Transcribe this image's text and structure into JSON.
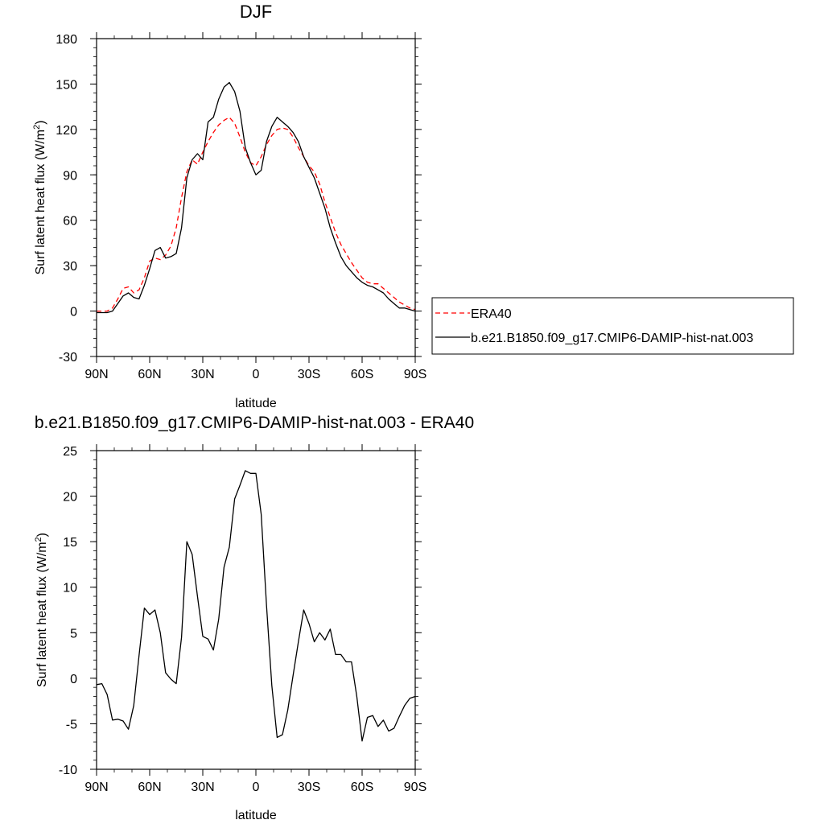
{
  "chart_data": [
    {
      "type": "line",
      "title": "DJF",
      "xlabel": "latitude",
      "ylabel": "Surf latent heat flux (W/m",
      "ylabel_sup": "2",
      "ylabel_close": ")",
      "xlim": [
        90,
        -90
      ],
      "ylim": [
        -30,
        180
      ],
      "xticks": [
        90,
        60,
        30,
        0,
        -30,
        -60,
        -90
      ],
      "xtick_labels": [
        "90N",
        "60N",
        "30N",
        "0",
        "30S",
        "60S",
        "90S"
      ],
      "yticks": [
        -30,
        0,
        30,
        60,
        90,
        120,
        150,
        180
      ],
      "ytick_labels": [
        "-30",
        "0",
        "30",
        "60",
        "90",
        "120",
        "150",
        "180"
      ],
      "legend": {
        "placement": "right",
        "entries": [
          "ERA40",
          "b.e21.B1850.f09_g17.CMIP6-DAMIP-hist-nat.003"
        ]
      },
      "series": [
        {
          "name": "ERA40",
          "color": "#ff0000",
          "dash": "dashed",
          "x": [
            90,
            87,
            84,
            81,
            78,
            75,
            72,
            69,
            66,
            63,
            60,
            57,
            54,
            51,
            48,
            45,
            42,
            39,
            36,
            33,
            30,
            27,
            24,
            21,
            18,
            15,
            12,
            9,
            6,
            3,
            0,
            -3,
            -6,
            -9,
            -12,
            -15,
            -18,
            -21,
            -24,
            -27,
            -30,
            -33,
            -36,
            -39,
            -42,
            -45,
            -48,
            -51,
            -54,
            -57,
            -60,
            -63,
            -66,
            -69,
            -72,
            -75,
            -78,
            -81,
            -84,
            -87,
            -90
          ],
          "y": [
            0,
            0,
            0,
            2,
            8,
            15,
            16,
            12,
            14,
            22,
            33,
            35,
            34,
            37,
            43,
            55,
            75,
            92,
            100,
            97,
            105,
            112,
            118,
            123,
            126,
            128,
            124,
            115,
            105,
            98,
            96,
            102,
            110,
            116,
            120,
            121,
            120,
            115,
            108,
            102,
            96,
            92,
            84,
            72,
            62,
            52,
            44,
            38,
            32,
            27,
            22,
            19,
            18,
            18,
            15,
            12,
            9,
            6,
            4,
            2,
            1
          ]
        },
        {
          "name": "b.e21.B1850.f09_g17.CMIP6-DAMIP-hist-nat.003",
          "color": "#000000",
          "dash": "solid",
          "x": [
            90,
            87,
            84,
            81,
            78,
            75,
            72,
            69,
            66,
            63,
            60,
            57,
            54,
            51,
            48,
            45,
            42,
            39,
            36,
            33,
            30,
            27,
            24,
            21,
            18,
            15,
            12,
            9,
            6,
            3,
            0,
            -3,
            -6,
            -9,
            -12,
            -15,
            -18,
            -21,
            -24,
            -27,
            -30,
            -33,
            -36,
            -39,
            -42,
            -45,
            -48,
            -51,
            -54,
            -57,
            -60,
            -63,
            -66,
            -69,
            -72,
            -75,
            -78,
            -81,
            -84,
            -87,
            -90
          ],
          "y": [
            -1,
            -1,
            -1,
            0,
            5,
            10,
            12,
            9,
            8,
            17,
            28,
            40,
            42,
            35,
            36,
            38,
            55,
            88,
            100,
            104,
            100,
            125,
            128,
            140,
            148,
            151,
            145,
            132,
            108,
            98,
            90,
            93,
            112,
            122,
            128,
            125,
            122,
            118,
            112,
            102,
            95,
            88,
            78,
            68,
            55,
            45,
            36,
            30,
            26,
            22,
            19,
            17,
            16,
            14,
            12,
            8,
            5,
            2,
            2,
            1,
            0
          ]
        }
      ]
    },
    {
      "type": "line",
      "title": "b.e21.B1850.f09_g17.CMIP6-DAMIP-hist-nat.003 - ERA40",
      "xlabel": "latitude",
      "ylabel": "Surf latent heat flux (W/m",
      "ylabel_sup": "2",
      "ylabel_close": ")",
      "xlim": [
        90,
        -90
      ],
      "ylim": [
        -10,
        25
      ],
      "xticks": [
        90,
        60,
        30,
        0,
        -30,
        -60,
        -90
      ],
      "xtick_labels": [
        "90N",
        "60N",
        "30N",
        "0",
        "30S",
        "60S",
        "90S"
      ],
      "yticks": [
        -10,
        -5,
        0,
        5,
        10,
        15,
        20,
        25
      ],
      "ytick_labels": [
        "-10",
        "-5",
        "0",
        "5",
        "10",
        "15",
        "20",
        "25"
      ],
      "series": [
        {
          "color": "#000000",
          "dash": "solid",
          "x": [
            90,
            87,
            84,
            81,
            78,
            75,
            72,
            69,
            66,
            63,
            60,
            57,
            54,
            51,
            48,
            45,
            42,
            39,
            36,
            33,
            30,
            27,
            24,
            21,
            18,
            15,
            12,
            9,
            6,
            3,
            0,
            -3,
            -6,
            -9,
            -12,
            -15,
            -18,
            -21,
            -24,
            -27,
            -30,
            -33,
            -36,
            -39,
            -42,
            -45,
            -48,
            -51,
            -54,
            -57,
            -60,
            -63,
            -66,
            -69,
            -72,
            -75,
            -78,
            -81,
            -84,
            -87,
            -90
          ],
          "y": [
            -0.7,
            -0.6,
            -1.8,
            -4.6,
            -4.5,
            -4.7,
            -5.6,
            -3.0,
            2.5,
            7.7,
            7.0,
            7.5,
            5.0,
            0.6,
            -0.1,
            -0.6,
            4.5,
            15.0,
            13.6,
            9.0,
            4.6,
            4.3,
            3.1,
            6.5,
            12.2,
            14.4,
            19.7,
            21.2,
            22.8,
            22.5,
            22.5,
            18.0,
            8.0,
            -0.8,
            -6.5,
            -6.2,
            -3.5,
            0.3,
            4.0,
            7.5,
            6.0,
            4.0,
            5.0,
            4.2,
            5.4,
            2.6,
            2.6,
            1.8,
            1.8,
            -2.0,
            -6.9,
            -4.3,
            -4.1,
            -5.3,
            -4.6,
            -5.8,
            -5.5,
            -4.2,
            -3.0,
            -2.2,
            -2.0
          ]
        }
      ]
    }
  ]
}
